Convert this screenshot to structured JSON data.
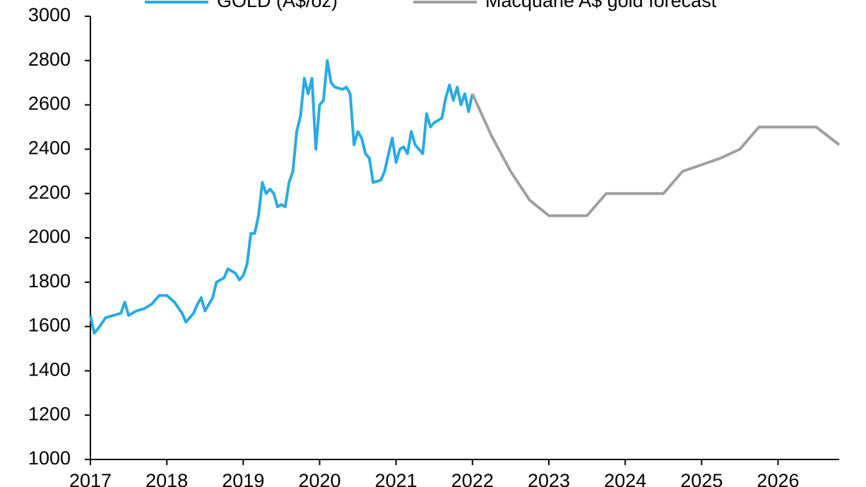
{
  "chart_data": {
    "type": "line",
    "series": [
      {
        "name": "GOLD (A$/oz)",
        "color": "#29abe2",
        "x": [
          2017.0,
          2017.05,
          2017.1,
          2017.2,
          2017.3,
          2017.4,
          2017.45,
          2017.5,
          2017.6,
          2017.7,
          2017.8,
          2017.9,
          2018.0,
          2018.1,
          2018.2,
          2018.25,
          2018.35,
          2018.4,
          2018.45,
          2018.5,
          2018.6,
          2018.65,
          2018.75,
          2018.8,
          2018.9,
          2018.95,
          2019.0,
          2019.05,
          2019.1,
          2019.15,
          2019.2,
          2019.25,
          2019.3,
          2019.35,
          2019.4,
          2019.45,
          2019.5,
          2019.55,
          2019.6,
          2019.65,
          2019.7,
          2019.75,
          2019.8,
          2019.85,
          2019.9,
          2019.95,
          2020.0,
          2020.05,
          2020.1,
          2020.15,
          2020.2,
          2020.3,
          2020.35,
          2020.4,
          2020.45,
          2020.5,
          2020.55,
          2020.6,
          2020.65,
          2020.7,
          2020.8,
          2020.85,
          2020.95,
          2021.0,
          2021.05,
          2021.1,
          2021.15,
          2021.2,
          2021.25,
          2021.3,
          2021.35,
          2021.4,
          2021.45,
          2021.5,
          2021.6,
          2021.65,
          2021.7,
          2021.75,
          2021.8,
          2021.85,
          2021.9,
          2021.95,
          2022.0
        ],
        "values": [
          1650,
          1570,
          1590,
          1640,
          1650,
          1660,
          1710,
          1650,
          1670,
          1680,
          1700,
          1740,
          1740,
          1710,
          1660,
          1620,
          1660,
          1700,
          1730,
          1670,
          1730,
          1800,
          1820,
          1860,
          1840,
          1810,
          1830,
          1880,
          2020,
          2020,
          2100,
          2250,
          2200,
          2220,
          2200,
          2140,
          2150,
          2140,
          2250,
          2300,
          2480,
          2550,
          2720,
          2650,
          2720,
          2400,
          2600,
          2620,
          2800,
          2700,
          2680,
          2670,
          2680,
          2650,
          2420,
          2480,
          2450,
          2380,
          2360,
          2250,
          2260,
          2300,
          2450,
          2340,
          2400,
          2410,
          2380,
          2480,
          2420,
          2400,
          2380,
          2560,
          2500,
          2520,
          2540,
          2630,
          2690,
          2620,
          2680,
          2600,
          2650,
          2570,
          2650
        ]
      },
      {
        "name": "Macquarie A$ gold forecast",
        "color": "#a0a0a0",
        "x": [
          2022.0,
          2022.25,
          2022.5,
          2022.75,
          2023.0,
          2023.25,
          2023.5,
          2023.75,
          2024.0,
          2024.25,
          2024.5,
          2024.75,
          2025.0,
          2025.25,
          2025.5,
          2025.75,
          2026.0,
          2026.25,
          2026.5,
          2026.8
        ],
        "values": [
          2650,
          2460,
          2300,
          2170,
          2100,
          2100,
          2100,
          2200,
          2200,
          2200,
          2200,
          2300,
          2330,
          2360,
          2400,
          2500,
          2500,
          2500,
          2500,
          2420
        ]
      }
    ],
    "xlim": [
      2017,
      2026.8
    ],
    "xticks": [
      2017,
      2018,
      2019,
      2020,
      2021,
      2022,
      2023,
      2024,
      2025,
      2026
    ],
    "ylim": [
      1000,
      3000
    ],
    "yticks": [
      1000,
      1200,
      1400,
      1600,
      1800,
      2000,
      2200,
      2400,
      2600,
      2800,
      3000
    ]
  }
}
